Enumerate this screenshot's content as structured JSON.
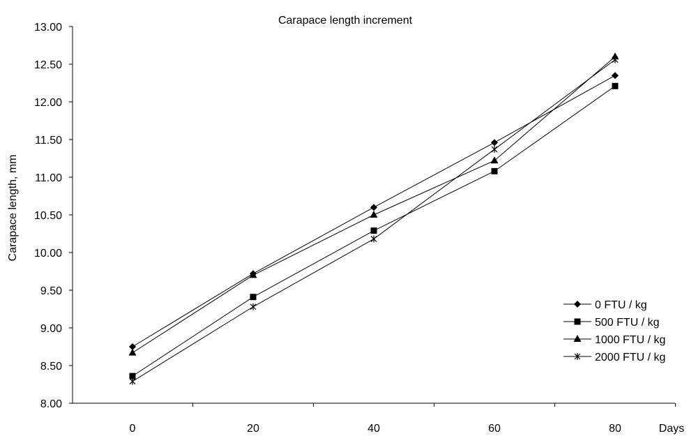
{
  "chart_data": {
    "type": "line",
    "title": "Carapace length increment",
    "xlabel": "Days",
    "ylabel": "Carapace length, mm",
    "x": [
      0,
      20,
      40,
      60,
      80
    ],
    "x_tick_labels": [
      "0",
      "20",
      "40",
      "60",
      "80"
    ],
    "ylim": [
      8.0,
      13.0
    ],
    "y_ticks": [
      8.0,
      8.5,
      9.0,
      9.5,
      10.0,
      10.5,
      11.0,
      11.5,
      12.0,
      12.5,
      13.0
    ],
    "y_tick_labels": [
      "8.00",
      "8.50",
      "9.00",
      "9.50",
      "10.00",
      "10.50",
      "11.00",
      "11.50",
      "12.00",
      "12.50",
      "13.00"
    ],
    "grid": false,
    "legend_position": "bottom-right",
    "series": [
      {
        "name": "0 FTU / kg",
        "marker": "diamond",
        "values": [
          8.75,
          9.72,
          10.6,
          11.46,
          12.35
        ]
      },
      {
        "name": "500 FTU / kg",
        "marker": "square",
        "values": [
          8.36,
          9.41,
          10.29,
          11.08,
          12.21
        ]
      },
      {
        "name": "1000 FTU / kg",
        "marker": "triangle",
        "values": [
          8.67,
          9.7,
          10.5,
          11.22,
          12.6
        ]
      },
      {
        "name": "2000 FTU / kg",
        "marker": "star",
        "values": [
          8.29,
          9.28,
          10.18,
          11.37,
          12.56
        ]
      }
    ],
    "colors": {
      "line": "#000000",
      "background": "#ffffff"
    }
  }
}
